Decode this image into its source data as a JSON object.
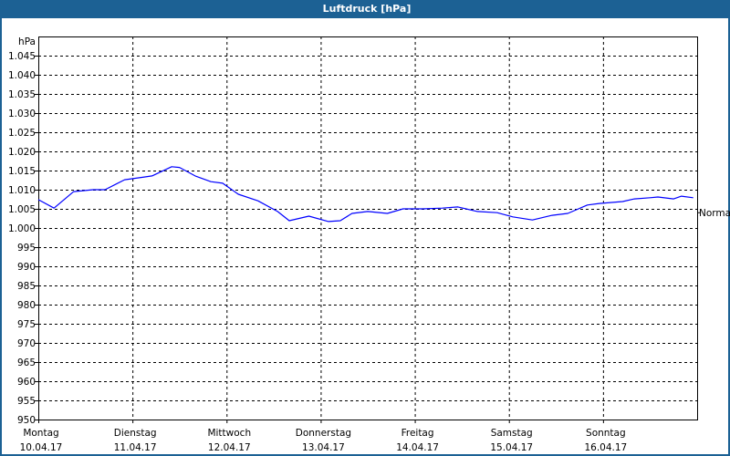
{
  "window": {
    "title": "Luftdruck [hPa]"
  },
  "chart_data": {
    "type": "line",
    "title": "Luftdruck [hPa]",
    "ylabel": "hPa",
    "ylim": [
      950,
      1050
    ],
    "yticks": [
      950,
      955,
      960,
      965,
      970,
      975,
      980,
      985,
      990,
      995,
      1000,
      1005,
      1010,
      1015,
      1020,
      1025,
      1030,
      1035,
      1040,
      1045
    ],
    "ytick_labels": [
      "950",
      "955",
      "960",
      "965",
      "970",
      "975",
      "980",
      "985",
      "990",
      "995",
      "1.000",
      "1.005",
      "1.010",
      "1.015",
      "1.020",
      "1.025",
      "1.030",
      "1.035",
      "1.040",
      "1.045"
    ],
    "xlim": [
      "10.04.17 00:00",
      "17.04.17 00:00"
    ],
    "xticks": [
      {
        "day": "Montag",
        "date": "10.04.17"
      },
      {
        "day": "Dienstag",
        "date": "11.04.17"
      },
      {
        "day": "Mittwoch",
        "date": "12.04.17"
      },
      {
        "day": "Donnerstag",
        "date": "13.04.17"
      },
      {
        "day": "Freitag",
        "date": "14.04.17"
      },
      {
        "day": "Samstag",
        "date": "15.04.17"
      },
      {
        "day": "Sonntag",
        "date": "16.04.17"
      }
    ],
    "grid": true,
    "annotation": {
      "label": "Normal",
      "value": 1004
    },
    "series": [
      {
        "color": "#0000ff",
        "points": [
          [
            "10.04.17 00:00",
            1007.4
          ],
          [
            "10.04.17 04:00",
            1005.2
          ],
          [
            "10.04.17 09:00",
            1009.5
          ],
          [
            "10.04.17 14:00",
            1010.0
          ],
          [
            "10.04.17 17:00",
            1010.0
          ],
          [
            "10.04.17 22:00",
            1012.6
          ],
          [
            "11.04.17 03:00",
            1013.3
          ],
          [
            "11.04.17 05:00",
            1013.6
          ],
          [
            "11.04.17 10:00",
            1016.0
          ],
          [
            "11.04.17 12:00",
            1015.8
          ],
          [
            "11.04.17 16:00",
            1013.6
          ],
          [
            "11.04.17 20:00",
            1012.1
          ],
          [
            "11.04.17 23:00",
            1011.7
          ],
          [
            "12.04.17 03:00",
            1008.8
          ],
          [
            "12.04.17 08:00",
            1007.1
          ],
          [
            "12.04.17 13:00",
            1004.3
          ],
          [
            "12.04.17 16:00",
            1001.9
          ],
          [
            "12.04.17 21:00",
            1003.1
          ],
          [
            "13.04.17 02:00",
            1001.7
          ],
          [
            "13.04.17 05:00",
            1001.9
          ],
          [
            "13.04.17 08:00",
            1003.8
          ],
          [
            "13.04.17 12:00",
            1004.3
          ],
          [
            "13.04.17 17:00",
            1003.8
          ],
          [
            "13.04.17 21:00",
            1005.0
          ],
          [
            "14.04.17 02:00",
            1005.0
          ],
          [
            "14.04.17 07:00",
            1005.2
          ],
          [
            "14.04.17 11:00",
            1005.5
          ],
          [
            "14.04.17 16:00",
            1004.3
          ],
          [
            "14.04.17 21:00",
            1004.0
          ],
          [
            "15.04.17 01:00",
            1002.9
          ],
          [
            "15.04.17 06:00",
            1002.1
          ],
          [
            "15.04.17 11:00",
            1003.3
          ],
          [
            "15.04.17 15:00",
            1003.8
          ],
          [
            "15.04.17 20:00",
            1006.0
          ],
          [
            "15.04.17 23:00",
            1006.4
          ],
          [
            "16.04.17 05:00",
            1006.9
          ],
          [
            "16.04.17 08:00",
            1007.6
          ],
          [
            "16.04.17 12:00",
            1007.9
          ],
          [
            "16.04.17 14:00",
            1008.1
          ],
          [
            "16.04.17 18:00",
            1007.6
          ],
          [
            "16.04.17 20:00",
            1008.3
          ],
          [
            "16.04.17 23:00",
            1007.9
          ]
        ]
      }
    ]
  }
}
